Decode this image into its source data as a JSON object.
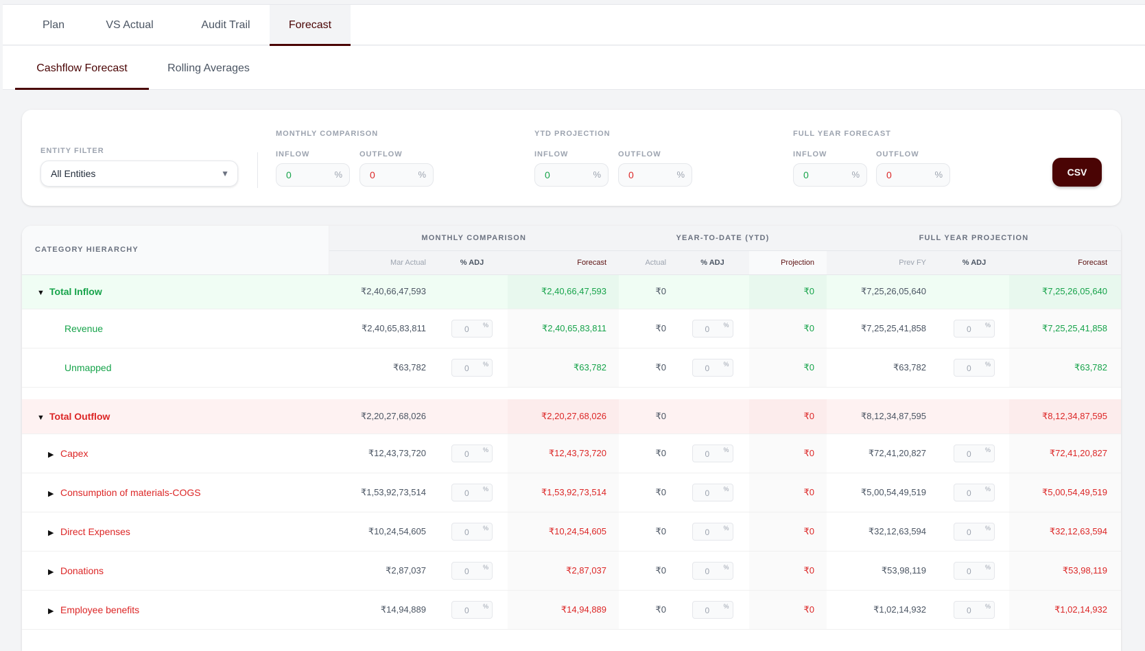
{
  "tabs": [
    {
      "label": "Plan"
    },
    {
      "label": "VS Actual"
    },
    {
      "label": "Audit Trail"
    },
    {
      "label": "Forecast",
      "active": true
    }
  ],
  "subtabs": [
    {
      "label": "Cashflow Forecast",
      "active": true
    },
    {
      "label": "Rolling Averages"
    }
  ],
  "filters": {
    "entity_label": "ENTITY FILTER",
    "entity_value": "All Entities",
    "monthly": {
      "title": "MONTHLY COMPARISON",
      "inflow_label": "INFLOW",
      "inflow": "0",
      "outflow_label": "OUTFLOW",
      "outflow": "0"
    },
    "ytd": {
      "title": "YTD PROJECTION",
      "inflow_label": "INFLOW",
      "inflow": "0",
      "outflow_label": "OUTFLOW",
      "outflow": "0"
    },
    "fy": {
      "title": "FULL YEAR FORECAST",
      "inflow_label": "INFLOW",
      "inflow": "0",
      "outflow_label": "OUTFLOW",
      "outflow": "0"
    },
    "pct": "%",
    "csv": "CSV"
  },
  "colors": {
    "accent": "#4a0404",
    "inflow": "#16a34a",
    "outflow": "#dc2626"
  },
  "table": {
    "cat_header": "CATEGORY HIERARCHY",
    "groups": [
      "MONTHLY COMPARISON",
      "YEAR-TO-DATE (YTD)",
      "FULL YEAR PROJECTION"
    ],
    "cols": [
      "Mar Actual",
      "% ADJ",
      "Forecast",
      "Actual",
      "% ADJ",
      "Projection",
      "Prev FY",
      "% ADJ",
      "Forecast"
    ],
    "rows": [
      {
        "type": "total-in",
        "name": "Total Inflow",
        "v": [
          "₹2,40,66,47,593",
          "₹2,40,66,47,593",
          "₹0",
          "₹0",
          "₹7,25,26,05,640",
          "₹7,25,26,05,640"
        ]
      },
      {
        "type": "in",
        "name": "Revenue",
        "v": [
          "₹2,40,65,83,811",
          "₹2,40,65,83,811",
          "₹0",
          "₹0",
          "₹7,25,25,41,858",
          "₹7,25,25,41,858"
        ],
        "adj": "0"
      },
      {
        "type": "in",
        "name": "Unmapped",
        "v": [
          "₹63,782",
          "₹63,782",
          "₹0",
          "₹0",
          "₹63,782",
          "₹63,782"
        ],
        "adj": "0"
      },
      {
        "type": "total-out",
        "name": "Total Outflow",
        "v": [
          "₹2,20,27,68,026",
          "₹2,20,27,68,026",
          "₹0",
          "₹0",
          "₹8,12,34,87,595",
          "₹8,12,34,87,595"
        ]
      },
      {
        "type": "out",
        "name": "Capex",
        "v": [
          "₹12,43,73,720",
          "₹12,43,73,720",
          "₹0",
          "₹0",
          "₹72,41,20,827",
          "₹72,41,20,827"
        ],
        "adj": "0"
      },
      {
        "type": "out",
        "name": "Consumption of materials-COGS",
        "v": [
          "₹1,53,92,73,514",
          "₹1,53,92,73,514",
          "₹0",
          "₹0",
          "₹5,00,54,49,519",
          "₹5,00,54,49,519"
        ],
        "adj": "0"
      },
      {
        "type": "out",
        "name": "Direct Expenses",
        "v": [
          "₹10,24,54,605",
          "₹10,24,54,605",
          "₹0",
          "₹0",
          "₹32,12,63,594",
          "₹32,12,63,594"
        ],
        "adj": "0"
      },
      {
        "type": "out",
        "name": "Donations",
        "v": [
          "₹2,87,037",
          "₹2,87,037",
          "₹0",
          "₹0",
          "₹53,98,119",
          "₹53,98,119"
        ],
        "adj": "0"
      },
      {
        "type": "out",
        "name": "Employee benefits",
        "v": [
          "₹14,94,889",
          "₹14,94,889",
          "₹0",
          "₹0",
          "₹1,02,14,932",
          "₹1,02,14,932"
        ],
        "adj": "0"
      }
    ]
  }
}
